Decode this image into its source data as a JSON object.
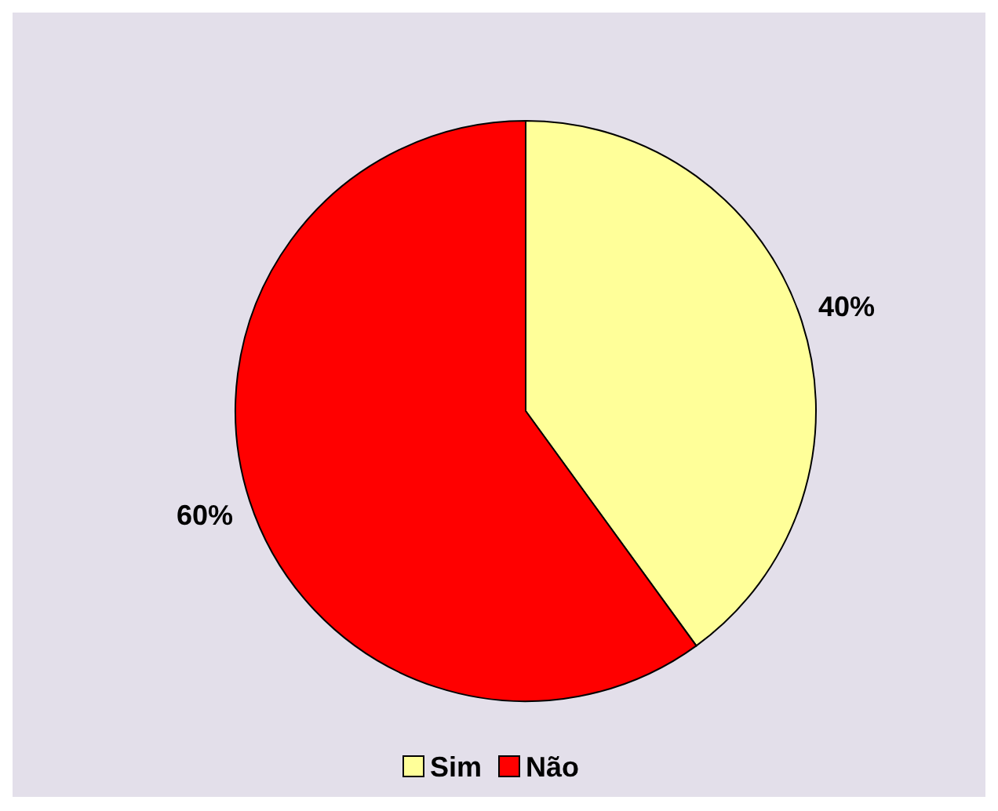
{
  "chart_data": {
    "type": "pie",
    "categories": [
      "Sim",
      "Não"
    ],
    "values": [
      40,
      60
    ],
    "colors": [
      "#ffff99",
      "#ff0000"
    ],
    "value_labels": [
      "40%",
      "60%"
    ],
    "legend": "bottom"
  }
}
